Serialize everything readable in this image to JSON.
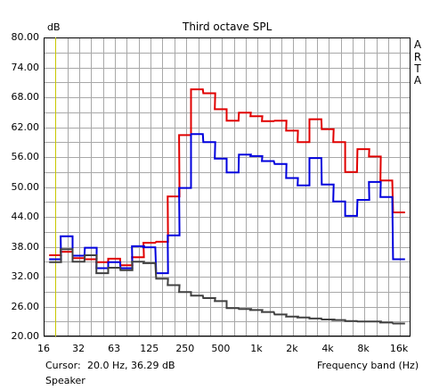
{
  "window": {
    "title": "Third octave SPL",
    "brand_letters": [
      "A",
      "R",
      "T",
      "A"
    ]
  },
  "footer": {
    "cursor_label": "Cursor:",
    "cursor_value": "20.0 Hz, 36.29 dB",
    "xlabel": "Frequency band (Hz)",
    "device_label": "Speaker"
  },
  "colors": {
    "grid": "#a8a8a8",
    "plot_bg": "#ffffff",
    "cursor": "#c8c800"
  },
  "chart_data": {
    "type": "line",
    "title": "Third octave SPL",
    "ylabel": "dB",
    "xlabel": "Frequency band (Hz)",
    "x_scale": "log",
    "xlim": [
      16,
      20000
    ],
    "ylim": [
      20,
      80
    ],
    "grid": true,
    "y_ticks": [
      "20.00",
      "26.00",
      "32.00",
      "38.00",
      "44.00",
      "50.00",
      "56.00",
      "62.00",
      "68.00",
      "74.00",
      "80.00"
    ],
    "x_ticks": [
      "16",
      "32",
      "63",
      "125",
      "250",
      "500",
      "1k",
      "2k",
      "4k",
      "8k",
      "16k"
    ],
    "cursor_x": 20,
    "bands": [
      20,
      25,
      31.5,
      40,
      50,
      63,
      80,
      100,
      125,
      160,
      200,
      250,
      315,
      400,
      500,
      630,
      800,
      1000,
      1250,
      1600,
      2000,
      2500,
      3150,
      4000,
      5000,
      6300,
      8000,
      10000,
      12500,
      16000
    ],
    "series": [
      {
        "color": "#e00000",
        "values": [
          36.3,
          37.0,
          35.7,
          35.5,
          34.9,
          35.6,
          34.3,
          35.9,
          38.8,
          39.0,
          48.1,
          60.4,
          69.6,
          68.8,
          65.6,
          63.3,
          64.9,
          64.2,
          63.2,
          63.3,
          61.3,
          59.0,
          63.6,
          61.6,
          59.0,
          53.0,
          57.6,
          56.1,
          51.3,
          44.9
        ]
      },
      {
        "color": "#0000dd",
        "values": [
          35.5,
          40.1,
          36.2,
          37.8,
          33.7,
          34.9,
          33.7,
          38.1,
          37.9,
          32.7,
          40.3,
          49.8,
          60.6,
          59.0,
          55.7,
          52.9,
          56.5,
          56.2,
          55.2,
          54.6,
          51.8,
          50.3,
          55.8,
          50.5,
          47.1,
          44.2,
          47.4,
          51.0,
          48.0,
          35.5
        ]
      },
      {
        "color": "#404040",
        "values": [
          34.9,
          37.5,
          35.0,
          36.3,
          32.7,
          33.8,
          33.3,
          35.0,
          34.7,
          31.6,
          30.3,
          28.9,
          28.2,
          27.7,
          27.1,
          25.7,
          25.5,
          25.3,
          24.9,
          24.4,
          24.0,
          23.8,
          23.6,
          23.4,
          23.3,
          23.1,
          23.0,
          23.0,
          22.8,
          22.6
        ]
      }
    ]
  }
}
